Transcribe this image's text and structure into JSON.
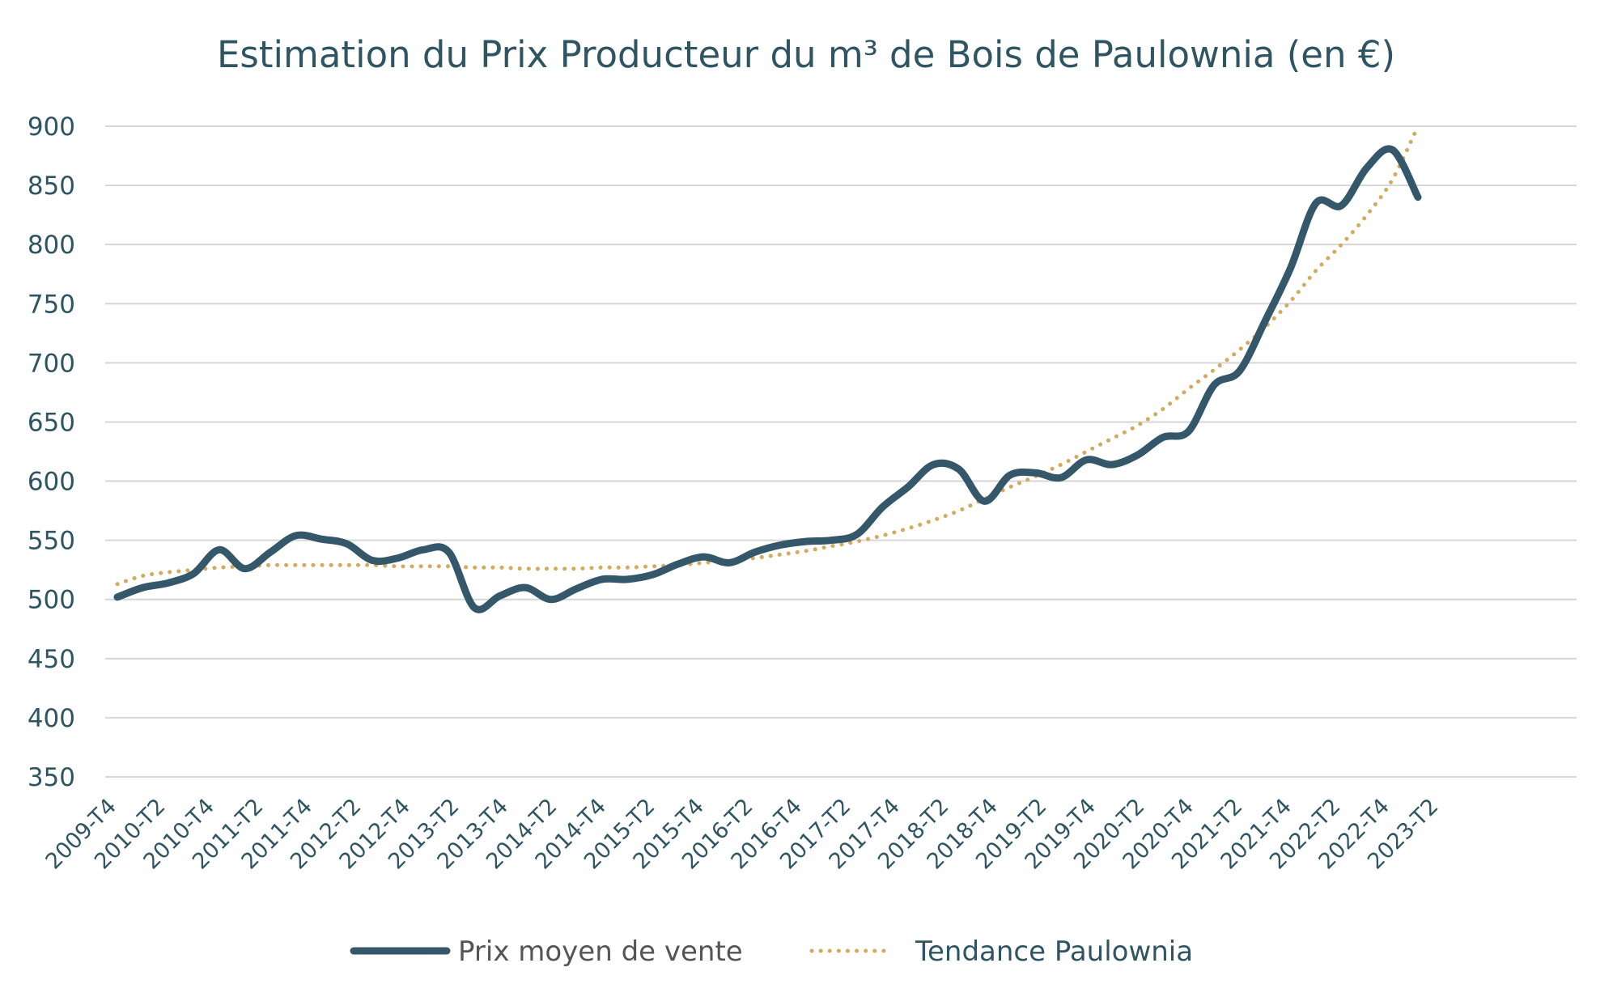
{
  "chart_data": {
    "type": "line",
    "title": "Estimation du Prix Producteur du m³ de Bois de Paulownia (en €)",
    "xlabel": "",
    "ylabel": "",
    "ylim": [
      350,
      900
    ],
    "yticks": [
      "900",
      "850",
      "800",
      "750",
      "700",
      "650",
      "600",
      "550",
      "500",
      "450",
      "400",
      "350"
    ],
    "ytick_values": [
      900,
      850,
      800,
      750,
      700,
      650,
      600,
      550,
      500,
      450,
      400,
      350
    ],
    "x_tick_labels": [
      "2009-T4",
      "2010-T2",
      "2010-T4",
      "2011-T2",
      "2011-T4",
      "2012-T2",
      "2012-T4",
      "2013-T2",
      "2013-T4",
      "2014-T2",
      "2014-T4",
      "2015-T2",
      "2015-T4",
      "2016-T2",
      "2016-T4",
      "2017-T2",
      "2017-T4",
      "2018-T2",
      "2018-T4",
      "2019-T2",
      "2019-T4",
      "2020-T2",
      "2020-T4",
      "2021-T2",
      "2021-T4",
      "2022-T2",
      "2022-T4",
      "2023-T2"
    ],
    "grid": true,
    "legend_position": "bottom",
    "series": [
      {
        "name": "Prix moyen de vente",
        "color": "#34586a",
        "style": "solid",
        "values": [
          502,
          510,
          514,
          522,
          542,
          526,
          540,
          554,
          551,
          547,
          533,
          535,
          542,
          540,
          493,
          503,
          510,
          500,
          509,
          517,
          517,
          521,
          530,
          536,
          531,
          540,
          546,
          549,
          550,
          555,
          578,
          595,
          614,
          610,
          583,
          605,
          607,
          603,
          618,
          614,
          622,
          637,
          642,
          681,
          693,
          735,
          780,
          835,
          833,
          865,
          880,
          840
        ]
      },
      {
        "name": "Tendance Paulownia",
        "color": "#d4aa5e",
        "style": "dotted",
        "values": [
          513,
          520,
          523,
          525,
          527,
          528,
          529,
          529,
          529,
          529,
          529,
          528,
          528,
          528,
          527,
          527,
          526,
          526,
          526,
          527,
          527,
          528,
          529,
          531,
          533,
          535,
          538,
          541,
          545,
          549,
          554,
          560,
          567,
          575,
          585,
          595,
          604,
          614,
          625,
          636,
          647,
          661,
          678,
          694,
          711,
          730,
          752,
          778,
          800,
          825,
          855,
          900
        ]
      }
    ]
  }
}
